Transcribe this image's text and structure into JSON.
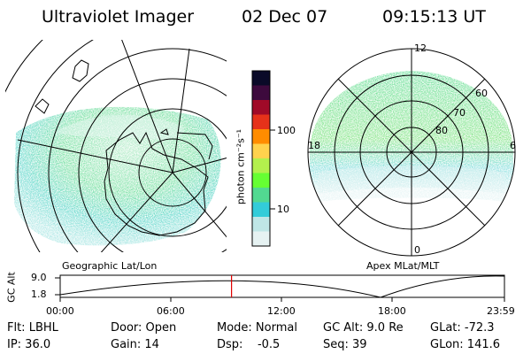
{
  "header": {
    "title": "Ultraviolet Imager",
    "date": "02 Dec 07",
    "time": "09:15:13 UT"
  },
  "left_panel": {
    "caption": "Geographic Lat/Lon"
  },
  "right_panel": {
    "caption": "Apex MLat/MLT",
    "mlt_labels": [
      "12",
      "18",
      "6",
      "0"
    ],
    "lat_labels": [
      "60",
      "70",
      "80"
    ]
  },
  "colorbar": {
    "label": "photon cm⁻²s⁻¹",
    "ticks": [
      "100",
      "10"
    ],
    "colors": [
      "#e6f2f2",
      "#bfe6e6",
      "#33ccd9",
      "#52d991",
      "#66ff33",
      "#b3f04d",
      "#ffd24d",
      "#ff8c00",
      "#e6321a",
      "#a00a28",
      "#3d0a3d",
      "#0a0a28"
    ]
  },
  "altitude_plot": {
    "ylabel": "GC Alt",
    "y_ticks": [
      "9.0",
      "1.8"
    ],
    "x_ticks": [
      "00:00",
      "06:00",
      "12:00",
      "18:00",
      "23:59"
    ],
    "marker_time": "09:15"
  },
  "meta": {
    "filter": "Flt: LBHL",
    "door": "Door: Open",
    "mode": "Mode: Normal",
    "gc_alt": "GC Alt: 9.0 Re",
    "glat": "GLat: -72.3",
    "ip": "IP: 36.0",
    "gain": "Gain: 14",
    "dsp": "Dsp:    -0.5",
    "seq": "Seq: 39",
    "glon": "GLon: 141.6"
  }
}
